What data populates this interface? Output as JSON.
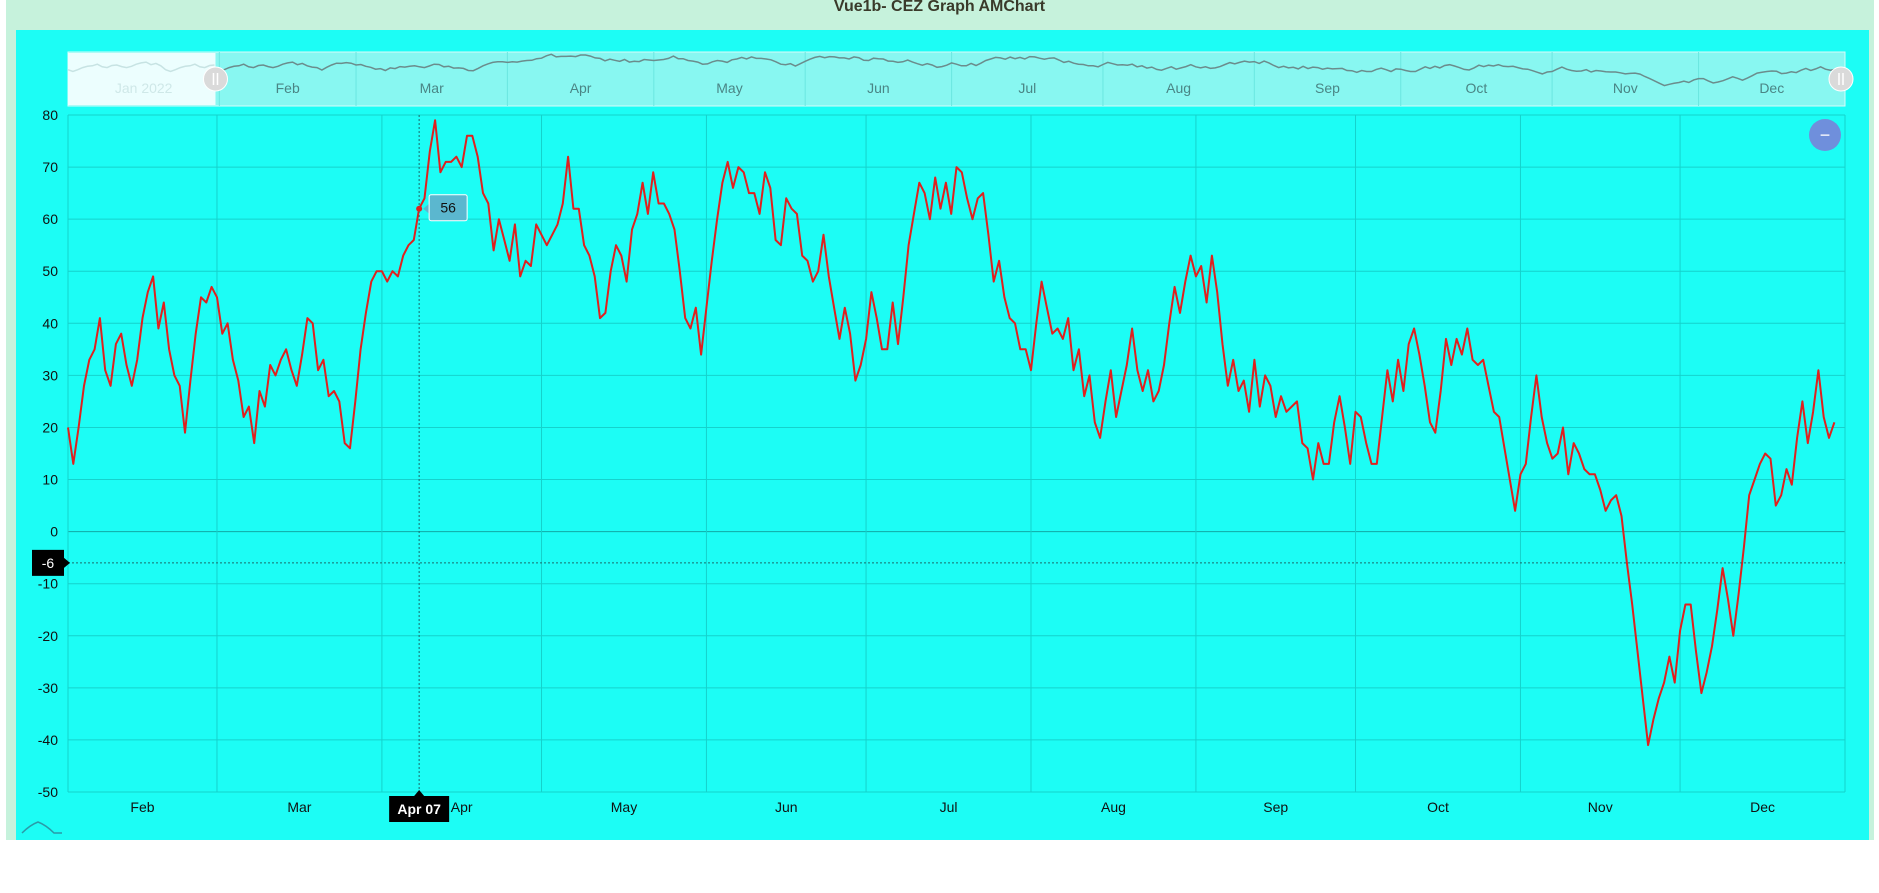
{
  "header": {
    "title": "Vue1b- CEZ Graph AMChart"
  },
  "colors": {
    "background": "#1cfdf5",
    "frame": "#c6f2dc",
    "series": "#e0201e",
    "scrollbar_series": "#6b8c8c",
    "zoom_button": "#6f8fdc"
  },
  "zoom_button": {
    "label": "−",
    "icon": "minus-icon"
  },
  "scrollbar": {
    "labels": [
      "Jan 2022",
      "Feb",
      "Mar",
      "Apr",
      "May",
      "Jun",
      "Jul",
      "Aug",
      "Sep",
      "Oct",
      "Nov",
      "Dec"
    ],
    "selection_start": 0.083,
    "selection_end": 1.0
  },
  "cursor": {
    "x_label": "Apr 07",
    "y_label": "-6",
    "tooltip_value": "56"
  },
  "chart_data": {
    "type": "line",
    "title": "",
    "xlabel": "",
    "ylabel": "",
    "x_range": [
      "2022-01-31",
      "2022-12-31"
    ],
    "ylim": [
      -50,
      80
    ],
    "yticks": [
      "-50",
      "-40",
      "-30",
      "-20",
      "-10",
      "0",
      "10",
      "20",
      "30",
      "40",
      "50",
      "60",
      "70",
      "80"
    ],
    "xticks": [
      "Feb",
      "Mar",
      "Apr",
      "May",
      "Jun",
      "Jul",
      "Aug",
      "Sep",
      "Oct",
      "Nov",
      "Dec"
    ],
    "grid": true,
    "series": [
      {
        "x_start": "2022-01-31",
        "interval": "daily",
        "values": [
          20,
          13,
          20,
          28,
          33,
          35,
          41,
          31,
          28,
          36,
          38,
          32,
          28,
          33,
          41,
          46,
          49,
          39,
          44,
          35,
          30,
          28,
          19,
          29,
          38,
          45,
          44,
          47,
          45,
          38,
          40,
          33,
          29,
          22,
          24,
          17,
          27,
          24,
          32,
          30,
          33,
          35,
          31,
          28,
          34,
          41,
          40,
          31,
          33,
          26,
          27,
          25,
          17,
          16,
          25,
          35,
          42,
          48,
          50,
          50,
          48,
          50,
          49,
          53,
          55,
          56,
          62,
          64,
          73,
          79,
          69,
          71,
          71,
          72,
          70,
          76,
          76,
          72,
          65,
          63,
          54,
          60,
          56,
          52,
          59,
          49,
          52,
          51,
          59,
          57,
          55,
          57,
          59,
          63,
          72,
          62,
          62,
          55,
          53,
          49,
          41,
          42,
          50,
          55,
          53,
          48,
          58,
          61,
          67,
          61,
          69,
          63,
          63,
          61,
          58,
          50,
          41,
          39,
          43,
          34,
          43,
          52,
          60,
          67,
          71,
          66,
          70,
          69,
          65,
          65,
          61,
          69,
          66,
          56,
          55,
          64,
          62,
          61,
          53,
          52,
          48,
          50,
          57,
          49,
          43,
          37,
          43,
          38,
          29,
          32,
          37,
          46,
          41,
          35,
          35,
          44,
          36,
          45,
          55,
          61,
          67,
          65,
          60,
          68,
          62,
          67,
          61,
          70,
          69,
          64,
          60,
          64,
          65,
          57,
          48,
          52,
          45,
          41,
          40,
          35,
          35,
          31,
          40,
          48,
          43,
          38,
          39,
          37,
          41,
          31,
          35,
          26,
          30,
          21,
          18,
          25,
          31,
          22,
          27,
          32,
          39,
          31,
          27,
          31,
          25,
          27,
          32,
          40,
          47,
          42,
          48,
          53,
          49,
          51,
          44,
          53,
          46,
          36,
          28,
          33,
          27,
          29,
          23,
          33,
          24,
          30,
          28,
          22,
          26,
          23,
          24,
          25,
          17,
          16,
          10,
          17,
          13,
          13,
          21,
          26,
          20,
          13,
          23,
          22,
          17,
          13,
          13,
          22,
          31,
          25,
          33,
          27,
          36,
          39,
          34,
          28,
          21,
          19,
          27,
          37,
          32,
          37,
          34,
          39,
          33,
          32,
          33,
          28,
          23,
          22,
          16,
          10,
          4,
          11,
          13,
          22,
          30,
          22,
          17,
          14,
          15,
          20,
          11,
          17,
          15,
          12,
          11,
          11,
          8,
          4,
          6,
          7,
          3,
          -6,
          -14,
          -23,
          -32,
          -41,
          -36,
          -32,
          -29,
          -24,
          -29,
          -19,
          -14,
          -14,
          -23,
          -31,
          -27,
          -22,
          -15,
          -7,
          -13,
          -20,
          -12,
          -3,
          7,
          10,
          13,
          15,
          14,
          5,
          7,
          12,
          9,
          18,
          25,
          17,
          23,
          31,
          22,
          18,
          21
        ]
      }
    ]
  }
}
